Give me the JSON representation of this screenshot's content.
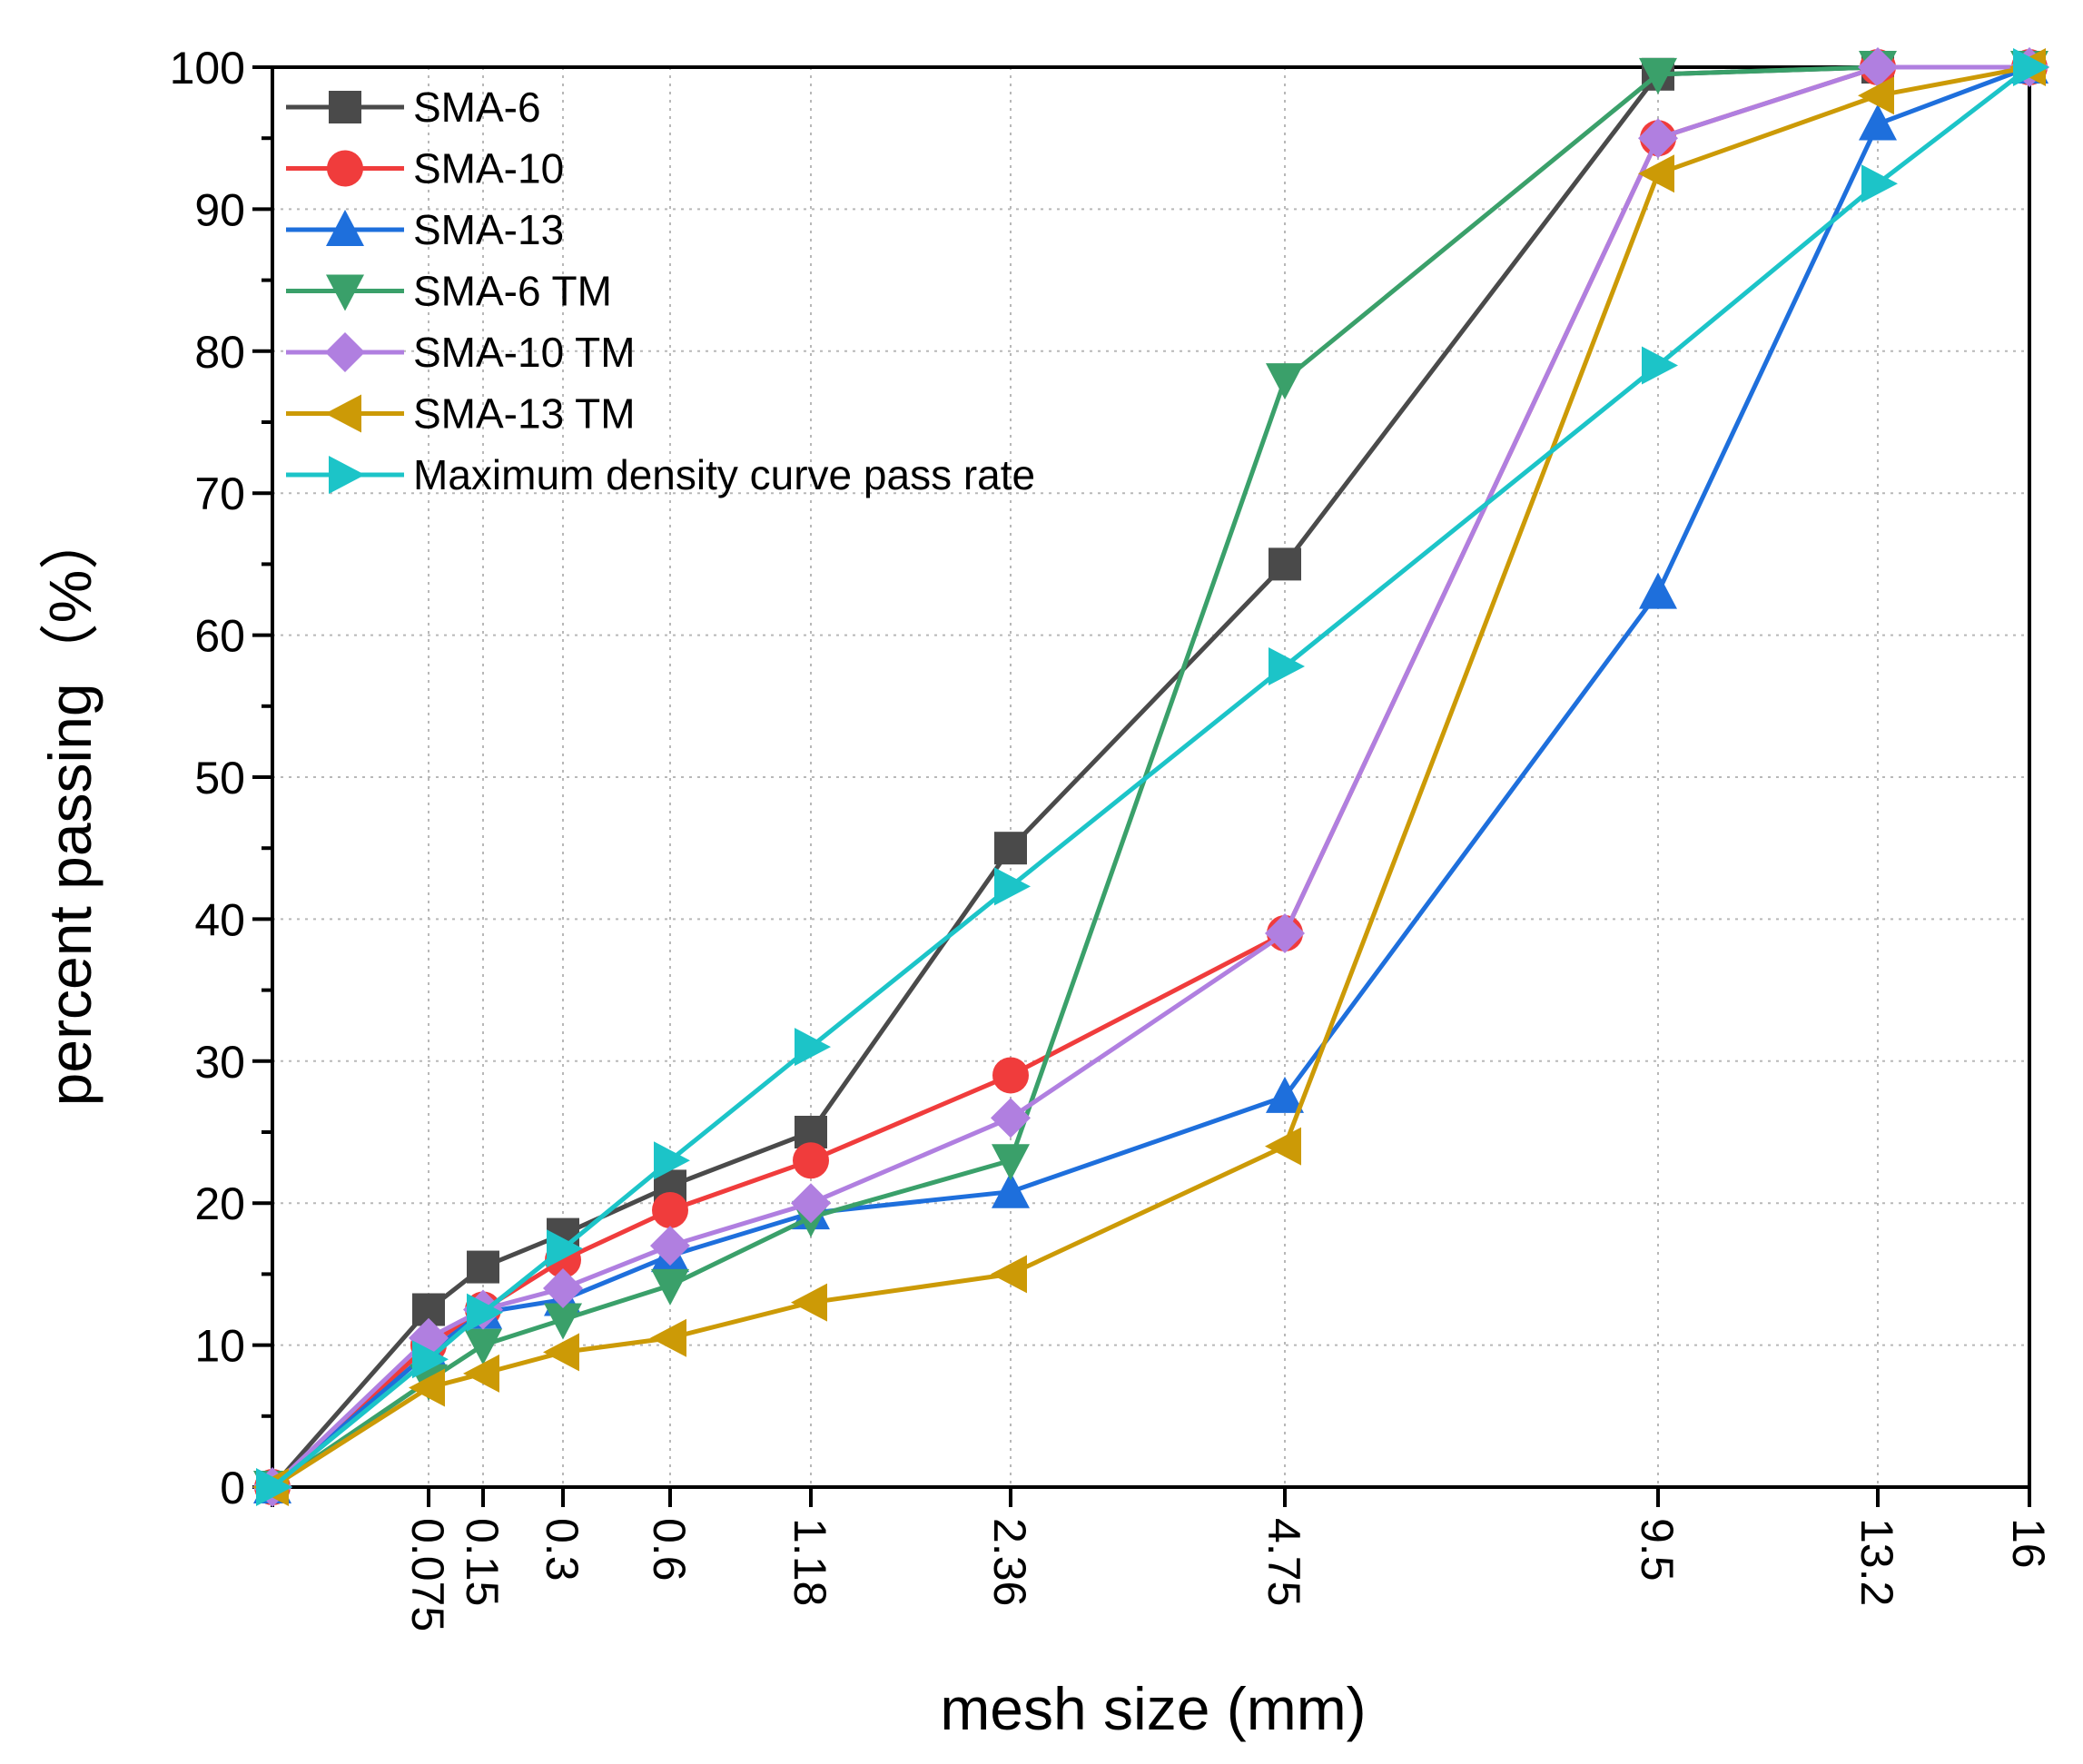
{
  "chart_data": {
    "type": "line",
    "title": "",
    "xlabel": "mesh size (mm)",
    "ylabel": "percent passing（%）",
    "ylim": [
      0,
      100
    ],
    "yticks": [
      "0",
      "10",
      "20",
      "30",
      "40",
      "50",
      "60",
      "70",
      "80",
      "90",
      "100"
    ],
    "categories": [
      "",
      "0.075",
      "0.15",
      "0.3",
      "0.6",
      "1.18",
      "2.36",
      "4.75",
      "9.5",
      "13.2",
      "16"
    ],
    "grid": true,
    "legend_position": "top-left",
    "series": [
      {
        "name": "SMA-6",
        "color": "#4a4a4a",
        "marker": "square",
        "values": [
          0,
          12.5,
          15.5,
          17.8,
          21.2,
          25,
          45,
          65,
          99.5,
          100,
          100
        ]
      },
      {
        "name": "SMA-10",
        "color": "#f03c3c",
        "marker": "circle",
        "values": [
          0,
          10,
          12.5,
          16,
          19.5,
          23,
          29,
          39,
          95,
          100,
          100
        ]
      },
      {
        "name": "SMA-13",
        "color": "#1e6fdc",
        "marker": "triangle-up",
        "values": [
          0,
          9.5,
          12.3,
          13.2,
          16.3,
          19.3,
          20.8,
          27.5,
          63,
          96,
          100
        ]
      },
      {
        "name": "SMA-6 TM",
        "color": "#3aa06a",
        "marker": "triangle-down",
        "values": [
          0,
          7.5,
          10,
          11.8,
          14.2,
          19,
          23,
          78,
          99.5,
          100,
          100
        ]
      },
      {
        "name": "SMA-10 TM",
        "color": "#b07fe0",
        "marker": "diamond",
        "values": [
          0,
          10.5,
          12.5,
          14,
          17,
          20,
          26,
          39,
          95,
          100,
          100
        ]
      },
      {
        "name": "SMA-13 TM",
        "color": "#cc9a06",
        "marker": "triangle-left",
        "values": [
          0,
          7,
          8,
          9.5,
          10.5,
          13,
          15,
          24,
          92.5,
          98,
          100
        ]
      },
      {
        "name": "Maximum density curve pass rate",
        "color": "#1cc4c8",
        "marker": "triangle-right",
        "values": [
          0,
          9,
          12.3,
          16.8,
          23,
          31,
          42.3,
          57.8,
          79,
          91.8,
          100
        ]
      }
    ]
  }
}
